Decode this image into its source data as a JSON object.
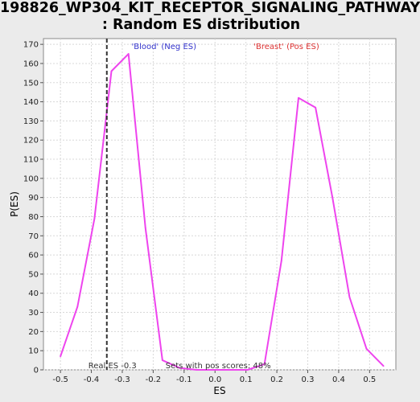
{
  "chart_data": {
    "type": "line",
    "title_lines": [
      "198826_WP304_KIT_RECEPTOR_SIGNALING_PATHWAY",
      ": Random ES distribution"
    ],
    "xlabel": "ES",
    "ylabel": "P(ES)",
    "xlim": [
      -0.555,
      0.585
    ],
    "ylim": [
      0,
      173
    ],
    "xticks": [
      -0.5,
      -0.4,
      -0.3,
      -0.2,
      -0.1,
      0.0,
      0.1,
      0.2,
      0.3,
      0.4,
      0.5
    ],
    "xtick_labels": [
      "-0.5",
      "-0.4",
      "-0.3",
      "-0.2",
      "-0.1",
      "0.0",
      "0.1",
      "0.2",
      "0.3",
      "0.4",
      "0.5"
    ],
    "yticks": [
      0,
      10,
      20,
      30,
      40,
      50,
      60,
      70,
      80,
      90,
      100,
      110,
      120,
      130,
      140,
      150,
      160,
      170
    ],
    "ytick_labels": [
      "0",
      "10",
      "20",
      "30",
      "40",
      "50",
      "60",
      "70",
      "80",
      "90",
      "100",
      "110",
      "120",
      "130",
      "140",
      "150",
      "160",
      "170"
    ],
    "grid": true,
    "series": [
      {
        "color": "#ee44ee",
        "x": [
          -0.5,
          -0.445,
          -0.39,
          -0.335,
          -0.28,
          -0.225,
          -0.17,
          -0.115,
          -0.06,
          -0.005,
          0.05,
          0.105,
          0.16,
          0.215,
          0.27,
          0.325,
          0.38,
          0.435,
          0.49,
          0.545
        ],
        "y": [
          7,
          33,
          79,
          156,
          165,
          74,
          5,
          1,
          0,
          0,
          0,
          0,
          3,
          57,
          142,
          137,
          90,
          38,
          11,
          2
        ]
      }
    ],
    "real_es": -0.35,
    "annotations": {
      "neg_label": "'Blood' (Neg ES)",
      "pos_label": "'Breast' (Pos ES)",
      "real_es_label": "Real ES -0.3",
      "pos_scores_label": "Sets with pos scores: 48%",
      "neg_color": "#3333cc",
      "pos_color": "#dd3333"
    }
  }
}
